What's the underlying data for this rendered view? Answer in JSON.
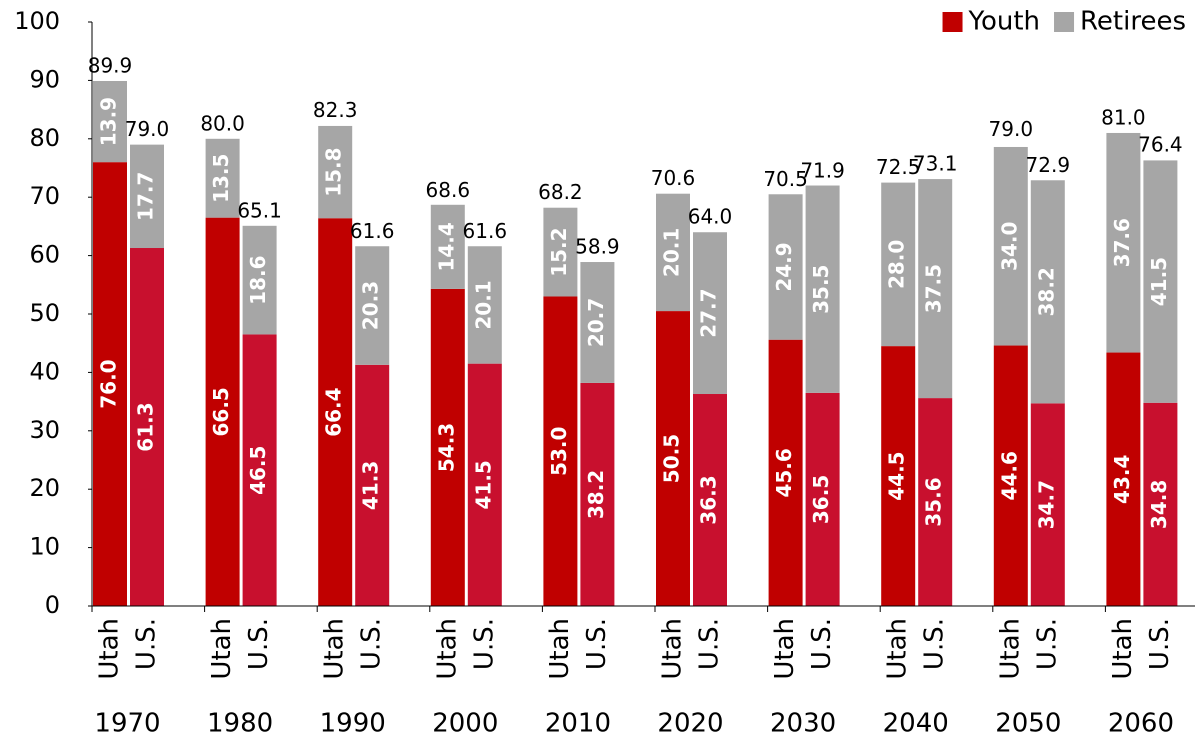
{
  "chart_data": {
    "type": "stacked_bar",
    "categories": [
      "Utah",
      "U.S.",
      "Utah",
      "U.S.",
      "Utah",
      "U.S.",
      "Utah",
      "U.S.",
      "Utah",
      "U.S.",
      "Utah",
      "U.S.",
      "Utah",
      "U.S.",
      "Utah",
      "U.S.",
      "Utah",
      "U.S.",
      "Utah",
      "U.S."
    ],
    "groups": [
      "1970",
      "1980",
      "1990",
      "2000",
      "2010",
      "2020",
      "2030",
      "2040",
      "2050",
      "2060"
    ],
    "series": [
      {
        "name": "Youth",
        "color": "#c00000",
        "bar_colors": [
          "#c00000",
          "#c8102e",
          "#c00000",
          "#c8102e",
          "#c00000",
          "#c8102e",
          "#c00000",
          "#c8102e",
          "#c00000",
          "#c8102e",
          "#c00000",
          "#c8102e",
          "#c00000",
          "#c8102e",
          "#c00000",
          "#c8102e",
          "#c00000",
          "#c8102e",
          "#c00000",
          "#c8102e"
        ],
        "values": [
          76,
          61.3,
          66.5,
          46.5,
          66.4,
          41.3,
          54.3,
          41.5,
          53,
          38.2,
          50.5,
          36.3,
          45.6,
          36.5,
          44.5,
          35.6,
          44.6,
          34.7,
          43.4,
          34.8
        ],
        "value_labels": [
          "76.0",
          "61.3",
          "66.5",
          "46.5",
          "66.4",
          "41.3",
          "54.3",
          "41.5",
          "53.0",
          "38.2",
          "50.5",
          "36.3",
          "45.6",
          "36.5",
          "44.5",
          "35.6",
          "44.6",
          "34.7",
          "43.4",
          "34.8"
        ]
      },
      {
        "name": "Retirees",
        "color": "#a6a6a6",
        "values": [
          13.9,
          17.7,
          13.5,
          18.6,
          15.8,
          20.3,
          14.4,
          20.1,
          15.2,
          20.7,
          20.1,
          27.7,
          24.9,
          35.5,
          28,
          37.5,
          34,
          38.2,
          37.6,
          41.5
        ],
        "value_labels": [
          "13.9",
          "17.7",
          "13.5",
          "18.6",
          "15.8",
          "20.3",
          "14.4",
          "20.1",
          "15.2",
          "20.7",
          "20.1",
          "27.7",
          "24.9",
          "35.5",
          "28.0",
          "37.5",
          "34.0",
          "38.2",
          "37.6",
          "41.5"
        ]
      }
    ],
    "totals": {
      "values": [
        89.9,
        79,
        80,
        65.1,
        82.3,
        61.6,
        68.6,
        61.6,
        68.2,
        58.9,
        70.6,
        64,
        70.5,
        71.9,
        72.5,
        73.1,
        79,
        72.9,
        81,
        76.4
      ],
      "value_labels": [
        "89.9",
        "79.0",
        "80.0",
        "65.1",
        "82.3",
        "61.6",
        "68.6",
        "61.6",
        "68.2",
        "58.9",
        "70.6",
        "64.0",
        "70.5",
        "71.9",
        "72.5",
        "73.1",
        "79.0",
        "72.9",
        "81.0",
        "76.4"
      ]
    },
    "ylim": [
      0,
      100
    ],
    "yticks": [
      0,
      10,
      20,
      30,
      40,
      50,
      60,
      70,
      80,
      90,
      100
    ],
    "grid": false,
    "legend": "top-right"
  }
}
